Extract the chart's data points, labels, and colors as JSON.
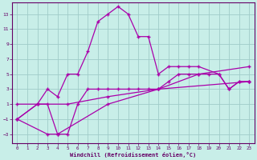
{
  "xlabel": "Windchill (Refroidissement éolien,°C)",
  "bg_color": "#c8eee8",
  "grid_color": "#a0ccc8",
  "line_color": "#aa00aa",
  "axis_label_color": "#660066",
  "tick_color": "#660066",
  "xlim": [
    -0.5,
    23.5
  ],
  "ylim": [
    -4.2,
    14.5
  ],
  "yticks": [
    -3,
    -1,
    1,
    3,
    5,
    7,
    9,
    11,
    13
  ],
  "xticks": [
    0,
    1,
    2,
    3,
    4,
    5,
    6,
    7,
    8,
    9,
    10,
    11,
    12,
    13,
    14,
    15,
    16,
    17,
    18,
    19,
    20,
    21,
    22,
    23
  ],
  "line1_x": [
    0,
    2,
    3,
    4,
    5,
    6,
    7,
    8,
    9,
    10,
    11,
    12,
    13,
    14,
    15,
    16,
    17,
    18,
    20,
    21,
    22,
    23
  ],
  "line1_y": [
    1,
    1,
    3,
    2,
    5,
    5,
    8,
    12,
    13,
    14,
    13,
    10,
    10,
    5,
    6,
    6,
    6,
    6,
    5,
    3,
    4,
    4
  ],
  "line2_x": [
    0,
    2,
    3,
    4,
    5,
    6,
    7,
    8,
    9,
    10,
    11,
    12,
    13,
    14,
    15,
    16,
    17,
    18,
    19,
    20,
    21,
    22,
    23
  ],
  "line2_y": [
    -1,
    1,
    1,
    -3,
    -3,
    1,
    3,
    3,
    3,
    3,
    3,
    3,
    3,
    3,
    4,
    5,
    5,
    5,
    5,
    5,
    3,
    4,
    4
  ],
  "line3_x": [
    0,
    2,
    5,
    9,
    14,
    18,
    23
  ],
  "line3_y": [
    -1,
    1,
    1,
    2,
    3,
    5,
    6
  ],
  "line4_x": [
    0,
    3,
    4,
    9,
    14,
    23
  ],
  "line4_y": [
    -1,
    -3,
    -3,
    1,
    3,
    4
  ]
}
